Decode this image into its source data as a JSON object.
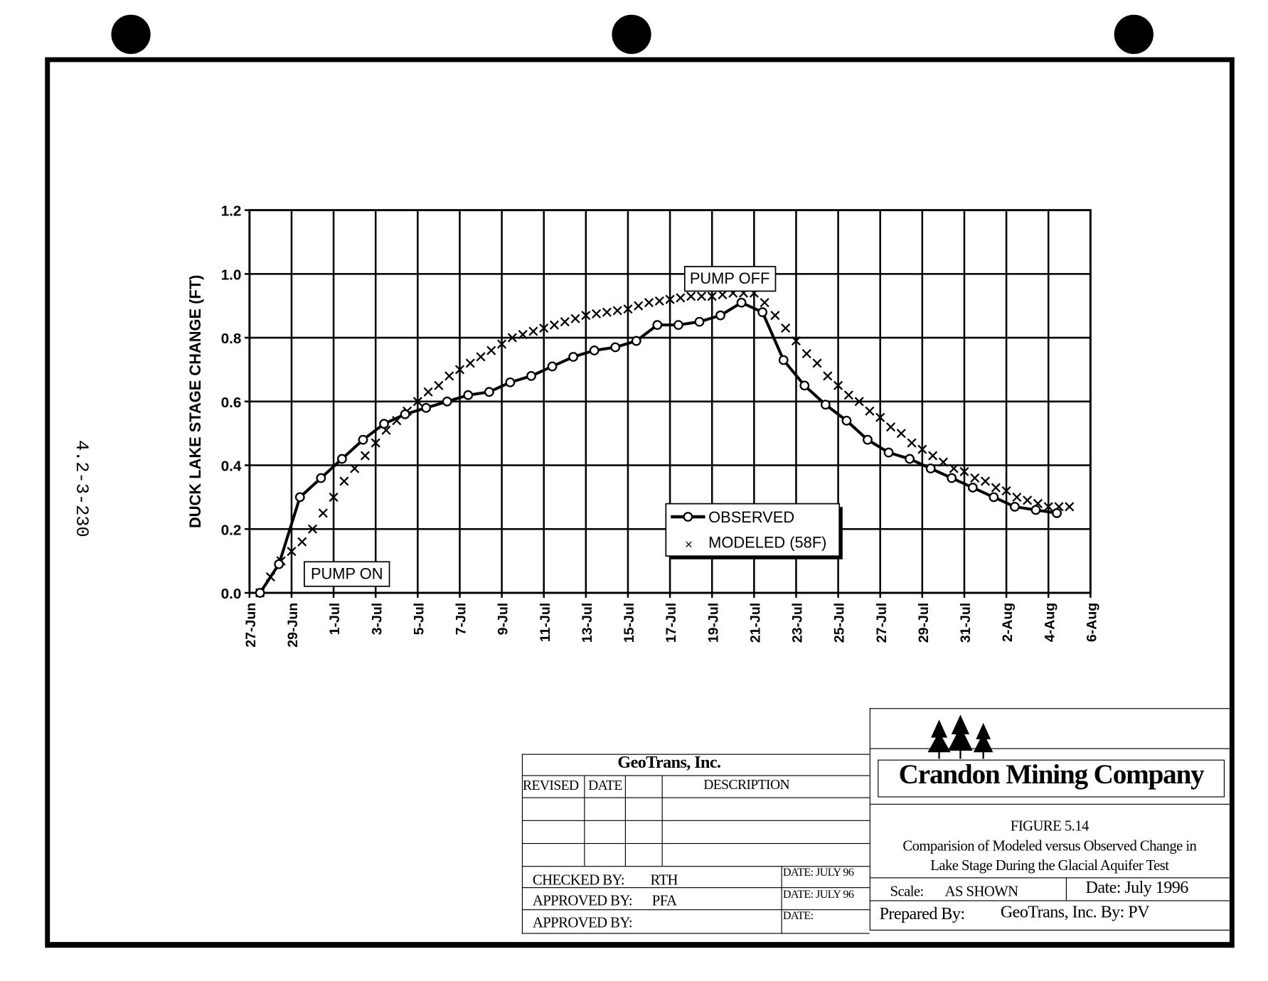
{
  "side_label": "4.2-3-230",
  "chart_data": {
    "type": "line",
    "title": "",
    "xlabel": "",
    "ylabel": "DUCK LAKE STAGE CHANGE (FT)",
    "xlim_days": [
      0,
      40
    ],
    "ylim": [
      0,
      1.2
    ],
    "grid": true,
    "x_tick_labels": [
      "27-Jun",
      "29-Jun",
      "1-Jul",
      "3-Jul",
      "5-Jul",
      "7-Jul",
      "9-Jul",
      "11-Jul",
      "13-Jul",
      "15-Jul",
      "17-Jul",
      "19-Jul",
      "21-Jul",
      "23-Jul",
      "25-Jul",
      "27-Jul",
      "29-Jul",
      "31-Jul",
      "2-Aug",
      "4-Aug",
      "6-Aug"
    ],
    "y_tick_labels": [
      "0.0",
      "0.2",
      "0.4",
      "0.6",
      "0.8",
      "1.0",
      "1.2"
    ],
    "x_unit": "days since 27-Jun",
    "legend_position": "center-right, lower",
    "annotations": [
      {
        "text": "PUMP ON",
        "day": 2.6,
        "y": 0.06
      },
      {
        "text": "PUMP OFF",
        "day": 20.6,
        "y": 0.99
      }
    ],
    "series": [
      {
        "name": "OBSERVED",
        "marker": "open-circle",
        "x": [
          0.5,
          1.4,
          2.4,
          3.4,
          4.4,
          5.4,
          6.4,
          7.4,
          8.4,
          9.4,
          10.4,
          11.4,
          12.4,
          13.4,
          14.4,
          15.4,
          16.4,
          17.4,
          18.4,
          19.4,
          20.4,
          21.4,
          22.4,
          23.4,
          24.4,
          25.4,
          26.4,
          27.4,
          28.4,
          29.4,
          30.4,
          31.4,
          32.4,
          33.4,
          34.4,
          35.4,
          36.4,
          37.4,
          38.4
        ],
        "y": [
          0.0,
          0.09,
          0.3,
          0.36,
          0.42,
          0.48,
          0.53,
          0.56,
          0.58,
          0.6,
          0.62,
          0.63,
          0.66,
          0.68,
          0.71,
          0.74,
          0.76,
          0.77,
          0.79,
          0.84,
          0.84,
          0.85,
          0.87,
          0.91,
          0.88,
          0.73,
          0.65,
          0.59,
          0.54,
          0.48,
          0.44,
          0.42,
          0.39,
          0.36,
          0.33,
          0.3,
          0.27,
          0.26,
          0.25
        ]
      },
      {
        "name": "MODELED (58F)",
        "marker": "x",
        "x": [
          0.5,
          1,
          1.5,
          2,
          2.5,
          3,
          3.5,
          4,
          4.5,
          5,
          5.5,
          6,
          6.5,
          7,
          7.5,
          8,
          8.5,
          9,
          9.5,
          10,
          10.5,
          11,
          11.5,
          12,
          12.5,
          13,
          13.5,
          14,
          14.5,
          15,
          15.5,
          16,
          16.5,
          17,
          17.5,
          18,
          18.5,
          19,
          19.5,
          20,
          20.5,
          21,
          21.5,
          22,
          22.5,
          23,
          23.5,
          24,
          24.5,
          25,
          25.5,
          26,
          26.5,
          27,
          27.5,
          28,
          28.5,
          29,
          29.5,
          30,
          30.5,
          31,
          31.5,
          32,
          32.5,
          33,
          33.5,
          34,
          34.5,
          35,
          35.5,
          36,
          36.5,
          37,
          37.5,
          38,
          38.5,
          39
        ],
        "y": [
          0.0,
          0.05,
          0.1,
          0.13,
          0.16,
          0.2,
          0.25,
          0.3,
          0.35,
          0.39,
          0.43,
          0.47,
          0.51,
          0.54,
          0.57,
          0.6,
          0.63,
          0.65,
          0.68,
          0.7,
          0.72,
          0.74,
          0.76,
          0.78,
          0.8,
          0.81,
          0.82,
          0.83,
          0.84,
          0.85,
          0.86,
          0.87,
          0.875,
          0.88,
          0.885,
          0.89,
          0.9,
          0.91,
          0.915,
          0.92,
          0.925,
          0.93,
          0.93,
          0.93,
          0.935,
          0.94,
          0.94,
          0.94,
          0.91,
          0.87,
          0.83,
          0.79,
          0.75,
          0.72,
          0.68,
          0.65,
          0.62,
          0.6,
          0.57,
          0.55,
          0.52,
          0.5,
          0.47,
          0.45,
          0.43,
          0.41,
          0.39,
          0.38,
          0.36,
          0.35,
          0.33,
          0.32,
          0.3,
          0.29,
          0.28,
          0.27,
          0.27,
          0.27
        ]
      }
    ]
  },
  "title_block": {
    "firm": "GeoTrans, Inc.",
    "col_revised": "REVISED",
    "col_date": "DATE",
    "col_description": "DESCRIPTION",
    "checked_by_label": "CHECKED BY:",
    "checked_by": "RTH",
    "approved_by_label": "APPROVED BY:",
    "approved_by": "PFA",
    "approved_by2_label": "APPROVED BY:",
    "date1": "DATE: JULY 96",
    "date2": "DATE: JULY 96",
    "date3": "DATE:",
    "company": "Crandon Mining Company",
    "figure": "FIGURE  5.14",
    "caption_line1": "Comparision of Modeled  versus Observed Change in",
    "caption_line2": "Lake Stage During the Glacial  Aquifer Test",
    "scale_label": "Scale:",
    "scale_value": "AS SHOWN",
    "date_label": "Date:  July 1996",
    "prepared_label": "Prepared By:",
    "prepared_value": "GeoTrans,  Inc.  By:  PV"
  }
}
